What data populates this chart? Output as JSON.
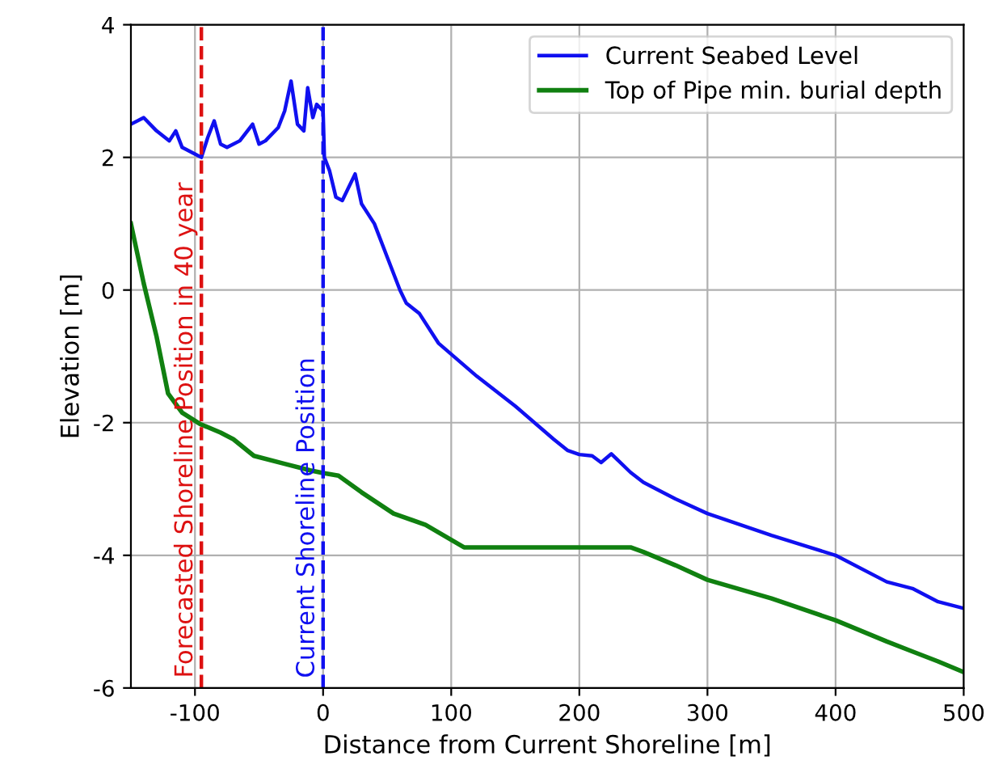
{
  "chart_data": {
    "type": "line",
    "xlabel": "Distance from Current Shoreline [m]",
    "ylabel": "Elevation [m]",
    "xlim": [
      -150,
      500
    ],
    "xticks": [
      -100,
      0,
      100,
      200,
      300,
      400,
      500
    ],
    "ylim": [
      -6,
      4
    ],
    "yticks": [
      -6,
      -4,
      -2,
      0,
      2,
      4
    ],
    "grid": true,
    "legend": "top right",
    "line_style": "solid",
    "series": [
      {
        "name": "Current Seabed Level",
        "color": "#1010f0",
        "x": [
          -150,
          -140,
          -130,
          -120,
          -115,
          -110,
          -100,
          -95,
          -90,
          -85,
          -80,
          -75,
          -65,
          -55,
          -50,
          -45,
          -35,
          -30,
          -25,
          -20,
          -15,
          -12,
          -8,
          -5,
          0,
          1,
          5,
          10,
          15,
          25,
          30,
          40,
          50,
          60,
          65,
          75,
          90,
          120,
          150,
          180,
          191,
          200,
          210,
          217,
          225,
          240,
          250,
          260,
          275,
          300,
          350,
          400,
          440,
          460,
          480,
          500
        ],
        "values": [
          2.5,
          2.6,
          2.4,
          2.25,
          2.4,
          2.15,
          2.05,
          2.0,
          2.3,
          2.55,
          2.2,
          2.15,
          2.25,
          2.5,
          2.2,
          2.25,
          2.45,
          2.7,
          3.15,
          2.5,
          2.4,
          3.05,
          2.6,
          2.8,
          2.7,
          2.0,
          1.8,
          1.4,
          1.35,
          1.75,
          1.3,
          1.0,
          0.5,
          0.0,
          -0.2,
          -0.35,
          -0.8,
          -1.3,
          -1.75,
          -2.25,
          -2.42,
          -2.48,
          -2.5,
          -2.6,
          -2.47,
          -2.75,
          -2.9,
          -3.0,
          -3.15,
          -3.37,
          -3.7,
          -4.0,
          -4.4,
          -4.5,
          -4.7,
          -4.8
        ]
      },
      {
        "name": "Top of Pipe min. burial depth",
        "color": "#108010",
        "x": [
          -150,
          -140,
          -130,
          -121,
          -110,
          -96,
          -80,
          -70,
          -54,
          -30,
          -10,
          0,
          12,
          30,
          55,
          80,
          110,
          150,
          200,
          240,
          250,
          275,
          300,
          350,
          400,
          440,
          460,
          480,
          500
        ],
        "values": [
          1.0,
          0.1,
          -0.7,
          -1.56,
          -1.85,
          -2.02,
          -2.15,
          -2.25,
          -2.5,
          -2.62,
          -2.72,
          -2.76,
          -2.8,
          -3.05,
          -3.37,
          -3.54,
          -3.88,
          -3.88,
          -3.88,
          -3.88,
          -3.95,
          -4.15,
          -4.37,
          -4.65,
          -4.98,
          -5.3,
          -5.45,
          -5.6,
          -5.76
        ]
      }
    ],
    "ref_lines": [
      {
        "axis": "x",
        "value": -95,
        "label": "Forecasted Shoreline Position in 40 year",
        "color": "#dd1111",
        "line_style": "dashed"
      },
      {
        "axis": "x",
        "value": 0,
        "label": "Current Shoreline Position",
        "color": "#1010f0",
        "line_style": "dashed"
      }
    ]
  }
}
